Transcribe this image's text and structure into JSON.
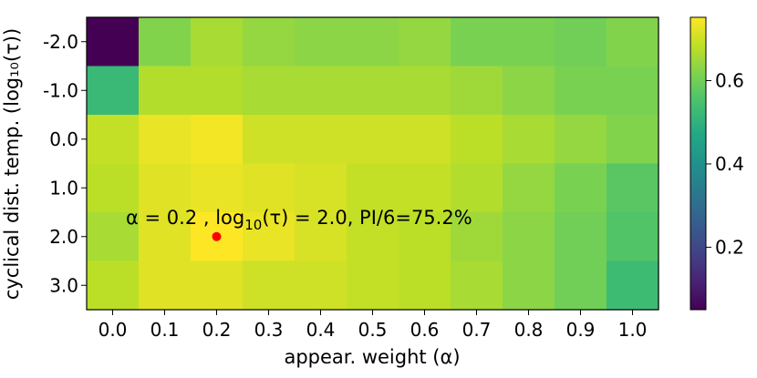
{
  "chart_data": {
    "type": "heatmap",
    "xlabel": "appear. weight (α)",
    "ylabel": "cyclical dist. temp. (log₁₀(τ))",
    "x_categories": [
      "0.0",
      "0.1",
      "0.2",
      "0.3",
      "0.4",
      "0.5",
      "0.6",
      "0.7",
      "0.8",
      "0.9",
      "1.0"
    ],
    "y_categories": [
      "-2.0",
      "-1.0",
      "0.0",
      "1.0",
      "2.0",
      "3.0"
    ],
    "values": [
      [
        0.05,
        0.62,
        0.66,
        0.64,
        0.63,
        0.63,
        0.64,
        0.61,
        0.61,
        0.6,
        0.62
      ],
      [
        0.52,
        0.67,
        0.67,
        0.66,
        0.66,
        0.66,
        0.66,
        0.65,
        0.63,
        0.61,
        0.61
      ],
      [
        0.69,
        0.73,
        0.74,
        0.7,
        0.7,
        0.7,
        0.7,
        0.68,
        0.66,
        0.64,
        0.62
      ],
      [
        0.68,
        0.72,
        0.73,
        0.72,
        0.71,
        0.69,
        0.69,
        0.67,
        0.64,
        0.61,
        0.57
      ],
      [
        0.66,
        0.72,
        0.752,
        0.73,
        0.71,
        0.69,
        0.68,
        0.65,
        0.63,
        0.6,
        0.56
      ],
      [
        0.68,
        0.72,
        0.72,
        0.7,
        0.7,
        0.69,
        0.68,
        0.66,
        0.63,
        0.6,
        0.53
      ]
    ],
    "colorbar": {
      "range": [
        0.05,
        0.752
      ],
      "ticks": [
        "0.2",
        "0.4",
        "0.6"
      ],
      "tick_values": [
        0.2,
        0.4,
        0.6
      ],
      "colormap": "viridis"
    },
    "best_point": {
      "x": "0.2",
      "y": "2.0",
      "color": "#ff0000"
    },
    "annotation": {
      "alpha_text": "α = 0.2",
      "log_prefix": " , log",
      "log_sub": "10",
      "log_suffix": "(τ) = 2.0, PI/6=75.2%"
    }
  }
}
